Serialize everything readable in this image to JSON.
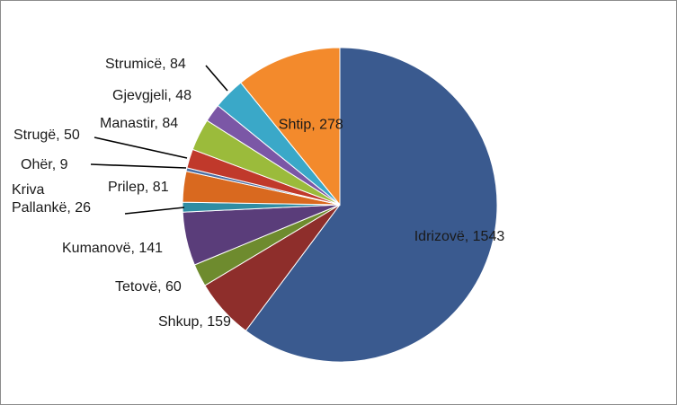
{
  "chart_data": {
    "type": "pie",
    "title": "",
    "start_angle_deg": 0,
    "direction": "clockwise",
    "slices": [
      {
        "label": "Idrizovë",
        "value": 1543,
        "text": "Idrizovë, 1543",
        "color": "#3A5A8F"
      },
      {
        "label": "Shkup",
        "value": 159,
        "text": "Shkup, 159",
        "color": "#8E2E2B"
      },
      {
        "label": "Tetovë",
        "value": 60,
        "text": "Tetovë, 60",
        "color": "#6E8B2E"
      },
      {
        "label": "Kumanovë",
        "value": 141,
        "text": "Kumanovë, 141",
        "color": "#5A3D7A"
      },
      {
        "label": "Kriva Pallankë",
        "value": 26,
        "text": "Kriva Pallankë, 26",
        "text_lines": [
          "Kriva",
          "Pallankë, 26"
        ],
        "color": "#2F8DA3"
      },
      {
        "label": "Prilep",
        "value": 81,
        "text": "Prilep, 81",
        "color": "#D9691F"
      },
      {
        "label": "Ohër",
        "value": 9,
        "text": "Ohër, 9",
        "color": "#4A6FA5"
      },
      {
        "label": "Strugë",
        "value": 50,
        "text": "Strugë, 50",
        "color": "#C0392B"
      },
      {
        "label": "Manastir",
        "value": 84,
        "text": "Manastir, 84",
        "color": "#9BBB3B"
      },
      {
        "label": "Gjevgjeli",
        "value": 48,
        "text": "Gjevgjeli, 48",
        "color": "#7B57A6"
      },
      {
        "label": "Strumicë",
        "value": 84,
        "text": "Strumicë, 84",
        "color": "#3AA8C8"
      },
      {
        "label": "Shtip",
        "value": 278,
        "text": "Shtip, 278",
        "color": "#F38A2C"
      }
    ]
  }
}
